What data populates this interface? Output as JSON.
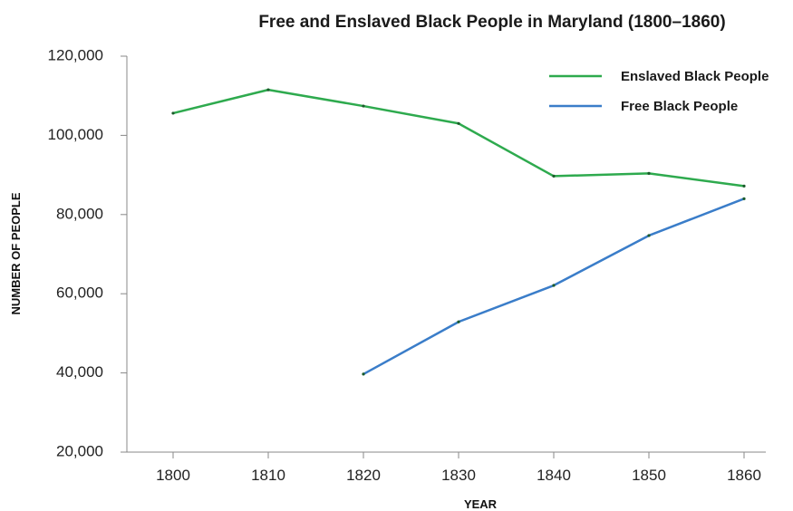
{
  "chart_data": {
    "type": "line",
    "title": "Free and Enslaved Black People in Maryland (1800–1860)",
    "xlabel": "YEAR",
    "ylabel": "NUMBER OF PEOPLE",
    "x": [
      1800,
      1810,
      1820,
      1830,
      1840,
      1850,
      1860
    ],
    "x_tick_labels": [
      "1800",
      "1810",
      "1820",
      "1830",
      "1840",
      "1850",
      "1860"
    ],
    "y_ticks": [
      20000,
      40000,
      60000,
      80000,
      100000,
      120000
    ],
    "y_tick_labels": [
      "20,000",
      "40,000",
      "60,000",
      "80,000",
      "100,000",
      "120,000"
    ],
    "ylim": [
      20000,
      120000
    ],
    "grid": false,
    "legend_position": "top-right",
    "series": [
      {
        "name": "Enslaved Black People",
        "color": "#2eaa4e",
        "values": [
          105600,
          111500,
          107400,
          103000,
          89700,
          90400,
          87200
        ]
      },
      {
        "name": "Free Black People",
        "color": "#3a7dc9",
        "values": [
          null,
          null,
          39700,
          52900,
          62100,
          74700,
          84000
        ]
      }
    ]
  }
}
